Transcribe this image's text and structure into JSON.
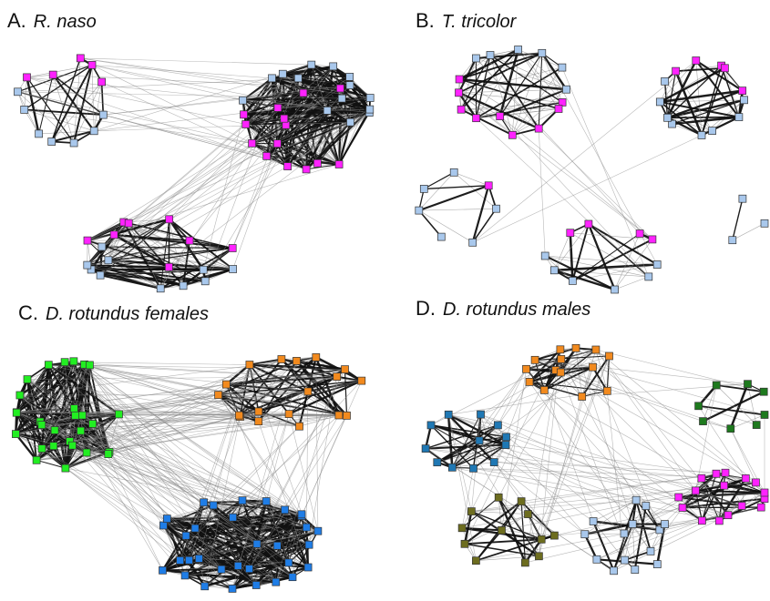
{
  "panels": [
    {
      "letter": "A.",
      "species": "R. naso"
    },
    {
      "letter": "B.",
      "species": "T. tricolor"
    },
    {
      "letter": "C.",
      "species": "D. rotundus females"
    },
    {
      "letter": "D.",
      "species": "D. rotundus males"
    }
  ],
  "colors": {
    "female": "#ff22ff",
    "male": "#a9c8ec",
    "green": "#22ee22",
    "orange": "#f28a1e",
    "blue": "#1f7de6",
    "teal": "#1f78b4",
    "olive": "#6d6d1f",
    "darkgreen": "#1e7a1e",
    "node_stroke": "#333333",
    "weak_edge": "#888888",
    "strong_edge": "#111111"
  }
}
